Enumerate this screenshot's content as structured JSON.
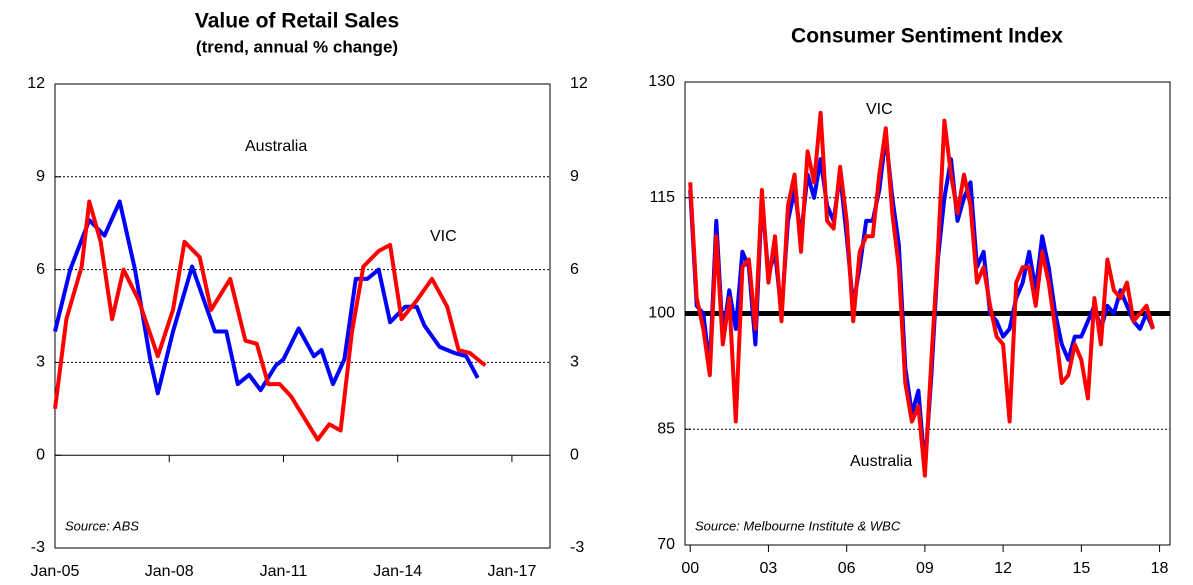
{
  "chart_data": [
    {
      "type": "line",
      "title": "Value of Retail Sales",
      "subtitle": "(trend, annual % change)",
      "xlim": [
        2005,
        2018
      ],
      "xticks": [
        {
          "value": 2005,
          "label": "Jan-05"
        },
        {
          "value": 2008,
          "label": "Jan-08"
        },
        {
          "value": 2011,
          "label": "Jan-11"
        },
        {
          "value": 2014,
          "label": "Jan-14"
        },
        {
          "value": 2017,
          "label": "Jan-17"
        }
      ],
      "ylim": [
        -3,
        12
      ],
      "yticks": [
        -3,
        0,
        3,
        6,
        9,
        12
      ],
      "right_axis_labels": true,
      "grid": true,
      "annotations": [
        "Source: ABS"
      ],
      "series": [
        {
          "name": "Australia",
          "color": "#0000ff",
          "x": [
            2005.0,
            2005.4,
            2005.9,
            2006.3,
            2006.7,
            2007.1,
            2007.5,
            2007.7,
            2008.1,
            2008.6,
            2009.2,
            2009.5,
            2009.8,
            2010.1,
            2010.4,
            2010.8,
            2011.0,
            2011.4,
            2011.8,
            2012.0,
            2012.3,
            2012.6,
            2012.9,
            2013.2,
            2013.5,
            2013.8,
            2014.2,
            2014.5,
            2014.7,
            2015.1,
            2015.5,
            2015.8,
            2016.1
          ],
          "values": [
            4.0,
            6.0,
            7.6,
            7.1,
            8.2,
            6.0,
            3.1,
            2.0,
            4.0,
            6.1,
            4.0,
            4.0,
            2.3,
            2.6,
            2.1,
            2.9,
            3.1,
            4.1,
            3.2,
            3.4,
            2.3,
            3.1,
            5.7,
            5.7,
            6.0,
            4.3,
            4.8,
            4.8,
            4.2,
            3.5,
            3.3,
            3.2,
            2.5
          ]
        },
        {
          "name": "VIC",
          "color": "#ff0000",
          "x": [
            2005.0,
            2005.3,
            2005.7,
            2005.9,
            2006.2,
            2006.5,
            2006.8,
            2007.2,
            2007.7,
            2008.1,
            2008.4,
            2008.8,
            2009.1,
            2009.6,
            2010.0,
            2010.3,
            2010.6,
            2010.9,
            2011.2,
            2011.6,
            2011.9,
            2012.2,
            2012.5,
            2012.8,
            2013.1,
            2013.5,
            2013.8,
            2014.1,
            2014.5,
            2014.9,
            2015.3,
            2015.6,
            2015.9,
            2016.3
          ],
          "values": [
            1.5,
            4.4,
            6.1,
            8.2,
            6.9,
            4.4,
            6.0,
            5.0,
            3.2,
            4.7,
            6.9,
            6.4,
            4.7,
            5.7,
            3.7,
            3.6,
            2.3,
            2.3,
            1.9,
            1.1,
            0.5,
            1.0,
            0.8,
            4.0,
            6.1,
            6.6,
            6.8,
            4.4,
            5.0,
            5.7,
            4.8,
            3.4,
            3.3,
            2.9
          ]
        }
      ]
    },
    {
      "type": "line",
      "title": "Consumer Sentiment Index",
      "xlim": [
        1999.8,
        2018.4
      ],
      "xticks": [
        {
          "value": 2000,
          "label": "00"
        },
        {
          "value": 2003,
          "label": "03"
        },
        {
          "value": 2006,
          "label": "06"
        },
        {
          "value": 2009,
          "label": "09"
        },
        {
          "value": 2012,
          "label": "12"
        },
        {
          "value": 2015,
          "label": "15"
        },
        {
          "value": 2018,
          "label": "18"
        }
      ],
      "ylim": [
        70,
        130
      ],
      "yticks": [
        70,
        85,
        100,
        115,
        130
      ],
      "grid": true,
      "ref_line": 100,
      "annotations": [
        "Source: Melbourne Institute & WBC"
      ],
      "x": [
        2000,
        2000.25,
        2000.5,
        2000.75,
        2001,
        2001.25,
        2001.5,
        2001.75,
        2002,
        2002.25,
        2002.5,
        2002.75,
        2003,
        2003.25,
        2003.5,
        2003.75,
        2004,
        2004.25,
        2004.5,
        2004.75,
        2005,
        2005.25,
        2005.5,
        2005.75,
        2006,
        2006.25,
        2006.5,
        2006.75,
        2007,
        2007.25,
        2007.5,
        2007.75,
        2008,
        2008.25,
        2008.5,
        2008.75,
        2009,
        2009.25,
        2009.5,
        2009.75,
        2010,
        2010.25,
        2010.5,
        2010.75,
        2011,
        2011.25,
        2011.5,
        2011.75,
        2012,
        2012.25,
        2012.5,
        2012.75,
        2013,
        2013.25,
        2013.5,
        2013.75,
        2014,
        2014.25,
        2014.5,
        2014.75,
        2015,
        2015.25,
        2015.5,
        2015.75,
        2016,
        2016.25,
        2016.5,
        2016.75,
        2017,
        2017.25,
        2017.5,
        2017.75
      ],
      "series": [
        {
          "name": "Australia",
          "color": "#0000ff",
          "values": [
            116,
            101,
            100,
            93,
            112,
            97,
            103,
            98,
            108,
            106,
            96,
            115,
            105,
            108,
            100,
            112,
            116,
            110,
            118,
            115,
            120,
            114,
            112,
            118,
            110,
            101,
            106,
            112,
            112,
            116,
            123,
            115,
            109,
            93,
            87,
            90,
            80,
            92,
            107,
            115,
            120,
            112,
            115,
            117,
            106,
            108,
            100,
            99,
            97,
            98,
            102,
            104,
            108,
            103,
            110,
            106,
            100,
            96,
            94,
            97,
            97,
            99,
            101,
            98,
            101,
            100,
            103,
            101,
            99,
            98,
            100,
            98
          ]
        },
        {
          "name": "VIC",
          "color": "#ff0000",
          "values": [
            117,
            102,
            98,
            92,
            110,
            96,
            102,
            86,
            106,
            107,
            98,
            116,
            104,
            110,
            99,
            114,
            118,
            108,
            121,
            117,
            126,
            112,
            111,
            119,
            112,
            99,
            108,
            110,
            110,
            118,
            124,
            113,
            106,
            91,
            86,
            88,
            79,
            94,
            108,
            125,
            118,
            113,
            118,
            114,
            104,
            106,
            101,
            97,
            96,
            86,
            104,
            106,
            106,
            101,
            108,
            104,
            98,
            91,
            92,
            96,
            94,
            89,
            102,
            96,
            107,
            103,
            102,
            104,
            99,
            100,
            101,
            98
          ]
        }
      ]
    }
  ]
}
